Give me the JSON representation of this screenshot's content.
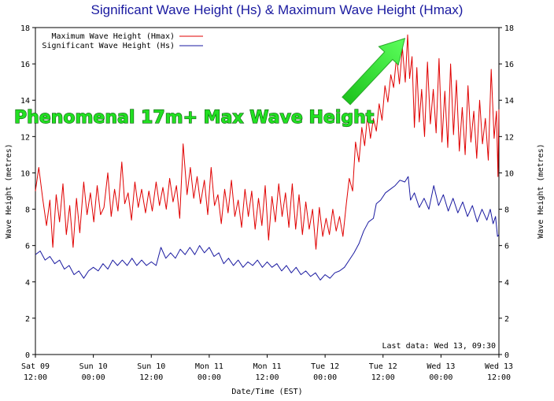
{
  "chart_data": {
    "type": "line",
    "title": "Significant Wave Height (Hs) & Maximum Wave Height (Hmax)",
    "xlabel": "Date/Time (EST)",
    "ylabel_left": "Wave Height (metres)",
    "ylabel_right": "Wave Height (metres)",
    "ylim": [
      0,
      18
    ],
    "y_ticks": [
      0,
      2,
      4,
      6,
      8,
      10,
      12,
      14,
      16,
      18
    ],
    "x_range_hours": [
      0,
      96
    ],
    "x_ticks": [
      {
        "h": 0,
        "line1": "Sat 09",
        "line2": "12:00"
      },
      {
        "h": 12,
        "line1": "Sun 10",
        "line2": "00:00"
      },
      {
        "h": 24,
        "line1": "Sun 10",
        "line2": "12:00"
      },
      {
        "h": 36,
        "line1": "Mon 11",
        "line2": "00:00"
      },
      {
        "h": 48,
        "line1": "Mon 11",
        "line2": "12:00"
      },
      {
        "h": 60,
        "line1": "Tue 12",
        "line2": "00:00"
      },
      {
        "h": 72,
        "line1": "Tue 12",
        "line2": "12:00"
      },
      {
        "h": 84,
        "line1": "Wed 13",
        "line2": "00:00"
      },
      {
        "h": 96,
        "line1": "Wed 13",
        "line2": "12:00"
      }
    ],
    "grid": false,
    "legend_position": "top-left",
    "last_data_label": "Last data: Wed 13, 09:30",
    "series": [
      {
        "name": "Maximum Wave Height (Hmax)",
        "color": "#e00000",
        "points": [
          [
            0,
            9.0
          ],
          [
            0.7,
            10.3
          ],
          [
            1.5,
            8.6
          ],
          [
            2.3,
            7.1
          ],
          [
            3.0,
            8.5
          ],
          [
            3.6,
            5.9
          ],
          [
            4.3,
            8.8
          ],
          [
            5.0,
            7.3
          ],
          [
            5.7,
            9.4
          ],
          [
            6.4,
            6.6
          ],
          [
            7.1,
            8.2
          ],
          [
            7.8,
            5.9
          ],
          [
            8.5,
            8.6
          ],
          [
            9.2,
            6.7
          ],
          [
            10.0,
            9.5
          ],
          [
            10.7,
            7.7
          ],
          [
            11.4,
            8.9
          ],
          [
            12.1,
            7.3
          ],
          [
            12.8,
            9.3
          ],
          [
            13.5,
            7.7
          ],
          [
            14.2,
            8.1
          ],
          [
            15.0,
            10.0
          ],
          [
            15.7,
            7.6
          ],
          [
            16.4,
            9.1
          ],
          [
            17.1,
            7.9
          ],
          [
            17.9,
            10.6
          ],
          [
            18.5,
            8.3
          ],
          [
            19.2,
            8.9
          ],
          [
            19.9,
            7.4
          ],
          [
            20.6,
            9.5
          ],
          [
            21.3,
            8.1
          ],
          [
            22.0,
            9.1
          ],
          [
            22.8,
            7.8
          ],
          [
            23.5,
            9.0
          ],
          [
            24.2,
            7.9
          ],
          [
            25.0,
            9.5
          ],
          [
            25.7,
            8.2
          ],
          [
            26.4,
            9.2
          ],
          [
            27.1,
            8.0
          ],
          [
            27.8,
            9.7
          ],
          [
            28.5,
            8.4
          ],
          [
            29.2,
            9.3
          ],
          [
            29.9,
            7.5
          ],
          [
            30.6,
            11.6
          ],
          [
            31.4,
            8.8
          ],
          [
            32.1,
            10.3
          ],
          [
            32.8,
            8.6
          ],
          [
            33.5,
            9.8
          ],
          [
            34.2,
            8.3
          ],
          [
            35.0,
            9.6
          ],
          [
            35.7,
            7.7
          ],
          [
            36.4,
            10.3
          ],
          [
            37.1,
            8.2
          ],
          [
            37.8,
            8.8
          ],
          [
            38.5,
            7.2
          ],
          [
            39.2,
            9.1
          ],
          [
            39.9,
            7.8
          ],
          [
            40.6,
            9.6
          ],
          [
            41.3,
            7.6
          ],
          [
            42.0,
            8.5
          ],
          [
            42.7,
            7.0
          ],
          [
            43.4,
            9.1
          ],
          [
            44.1,
            7.6
          ],
          [
            44.8,
            9.0
          ],
          [
            45.5,
            6.9
          ],
          [
            46.2,
            8.6
          ],
          [
            46.9,
            7.1
          ],
          [
            47.6,
            9.3
          ],
          [
            48.3,
            6.3
          ],
          [
            49.0,
            8.7
          ],
          [
            49.7,
            7.3
          ],
          [
            50.4,
            9.4
          ],
          [
            51.1,
            7.6
          ],
          [
            51.8,
            8.9
          ],
          [
            52.5,
            7.0
          ],
          [
            53.2,
            9.4
          ],
          [
            53.9,
            6.9
          ],
          [
            54.6,
            8.8
          ],
          [
            55.3,
            6.6
          ],
          [
            56.0,
            8.4
          ],
          [
            56.7,
            6.9
          ],
          [
            57.4,
            8.0
          ],
          [
            58.1,
            5.8
          ],
          [
            58.8,
            8.1
          ],
          [
            59.5,
            6.5
          ],
          [
            60.2,
            7.5
          ],
          [
            60.9,
            6.6
          ],
          [
            61.6,
            8.0
          ],
          [
            62.3,
            6.8
          ],
          [
            63.0,
            7.6
          ],
          [
            63.7,
            6.5
          ],
          [
            64.4,
            8.3
          ],
          [
            65.0,
            9.7
          ],
          [
            65.7,
            9.0
          ],
          [
            66.3,
            11.7
          ],
          [
            67.0,
            10.6
          ],
          [
            67.6,
            12.5
          ],
          [
            68.2,
            11.5
          ],
          [
            68.8,
            13.2
          ],
          [
            69.4,
            11.9
          ],
          [
            70.0,
            13.0
          ],
          [
            70.6,
            12.3
          ],
          [
            71.2,
            13.8
          ],
          [
            71.8,
            12.9
          ],
          [
            72.4,
            14.8
          ],
          [
            73.0,
            13.9
          ],
          [
            73.6,
            15.4
          ],
          [
            74.2,
            14.7
          ],
          [
            74.8,
            16.4
          ],
          [
            75.4,
            14.9
          ],
          [
            76.0,
            16.9
          ],
          [
            76.6,
            15.0
          ],
          [
            77.1,
            17.6
          ],
          [
            77.5,
            15.2
          ],
          [
            78.0,
            16.4
          ],
          [
            78.5,
            12.5
          ],
          [
            79.0,
            15.8
          ],
          [
            79.5,
            12.8
          ],
          [
            80.0,
            14.6
          ],
          [
            80.6,
            12.0
          ],
          [
            81.2,
            16.1
          ],
          [
            81.8,
            12.7
          ],
          [
            82.4,
            14.6
          ],
          [
            83.0,
            12.2
          ],
          [
            83.6,
            16.3
          ],
          [
            84.2,
            11.7
          ],
          [
            84.8,
            14.5
          ],
          [
            85.4,
            11.4
          ],
          [
            86.0,
            16.0
          ],
          [
            86.6,
            12.1
          ],
          [
            87.2,
            15.1
          ],
          [
            87.8,
            11.2
          ],
          [
            88.4,
            13.6
          ],
          [
            89.0,
            11.0
          ],
          [
            89.6,
            14.8
          ],
          [
            90.2,
            11.7
          ],
          [
            90.8,
            13.4
          ],
          [
            91.4,
            10.8
          ],
          [
            92.0,
            14.0
          ],
          [
            92.6,
            11.6
          ],
          [
            93.2,
            13.0
          ],
          [
            93.8,
            10.7
          ],
          [
            94.4,
            15.7
          ],
          [
            95.0,
            11.9
          ],
          [
            95.5,
            13.4
          ],
          [
            95.8,
            9.8
          ],
          [
            96.0,
            13.5
          ]
        ]
      },
      {
        "name": "Significant Wave Height (Hs)",
        "color": "#1a1aa0",
        "points": [
          [
            0,
            5.5
          ],
          [
            1.0,
            5.7
          ],
          [
            2.0,
            5.2
          ],
          [
            3.0,
            5.4
          ],
          [
            4.0,
            5.0
          ],
          [
            5.0,
            5.2
          ],
          [
            6.0,
            4.7
          ],
          [
            7.0,
            4.9
          ],
          [
            8.0,
            4.4
          ],
          [
            9.0,
            4.6
          ],
          [
            10.0,
            4.2
          ],
          [
            11.0,
            4.6
          ],
          [
            12.0,
            4.8
          ],
          [
            13.0,
            4.6
          ],
          [
            14.0,
            5.0
          ],
          [
            15.0,
            4.7
          ],
          [
            16.0,
            5.2
          ],
          [
            17.0,
            4.9
          ],
          [
            18.0,
            5.2
          ],
          [
            19.0,
            4.9
          ],
          [
            20.0,
            5.3
          ],
          [
            21.0,
            4.9
          ],
          [
            22.0,
            5.2
          ],
          [
            23.0,
            4.9
          ],
          [
            24.0,
            5.1
          ],
          [
            25.0,
            4.9
          ],
          [
            26.0,
            5.9
          ],
          [
            27.0,
            5.3
          ],
          [
            28.0,
            5.6
          ],
          [
            29.0,
            5.3
          ],
          [
            30.0,
            5.8
          ],
          [
            31.0,
            5.5
          ],
          [
            32.0,
            5.9
          ],
          [
            33.0,
            5.5
          ],
          [
            34.0,
            6.0
          ],
          [
            35.0,
            5.6
          ],
          [
            36.0,
            5.9
          ],
          [
            37.0,
            5.4
          ],
          [
            38.0,
            5.6
          ],
          [
            39.0,
            5.0
          ],
          [
            40.0,
            5.3
          ],
          [
            41.0,
            4.9
          ],
          [
            42.0,
            5.2
          ],
          [
            43.0,
            4.8
          ],
          [
            44.0,
            5.1
          ],
          [
            45.0,
            4.9
          ],
          [
            46.0,
            5.2
          ],
          [
            47.0,
            4.8
          ],
          [
            48.0,
            5.1
          ],
          [
            49.0,
            4.8
          ],
          [
            50.0,
            5.0
          ],
          [
            51.0,
            4.6
          ],
          [
            52.0,
            4.9
          ],
          [
            53.0,
            4.5
          ],
          [
            54.0,
            4.8
          ],
          [
            55.0,
            4.4
          ],
          [
            56.0,
            4.6
          ],
          [
            57.0,
            4.3
          ],
          [
            58.0,
            4.5
          ],
          [
            59.0,
            4.1
          ],
          [
            60.0,
            4.4
          ],
          [
            61.0,
            4.2
          ],
          [
            62.0,
            4.5
          ],
          [
            63.0,
            4.6
          ],
          [
            64.0,
            4.8
          ],
          [
            65.0,
            5.2
          ],
          [
            66.0,
            5.6
          ],
          [
            67.0,
            6.1
          ],
          [
            68.0,
            6.8
          ],
          [
            69.0,
            7.3
          ],
          [
            70.0,
            7.5
          ],
          [
            70.6,
            8.3
          ],
          [
            71.5,
            8.5
          ],
          [
            72.5,
            8.9
          ],
          [
            73.5,
            9.1
          ],
          [
            74.5,
            9.3
          ],
          [
            75.5,
            9.6
          ],
          [
            76.5,
            9.5
          ],
          [
            77.2,
            9.8
          ],
          [
            77.7,
            8.5
          ],
          [
            78.5,
            8.9
          ],
          [
            79.5,
            8.1
          ],
          [
            80.5,
            8.6
          ],
          [
            81.5,
            8.0
          ],
          [
            82.5,
            9.3
          ],
          [
            83.5,
            8.2
          ],
          [
            84.5,
            8.8
          ],
          [
            85.5,
            7.9
          ],
          [
            86.5,
            8.6
          ],
          [
            87.5,
            7.8
          ],
          [
            88.5,
            8.4
          ],
          [
            89.5,
            7.6
          ],
          [
            90.5,
            8.2
          ],
          [
            91.5,
            7.3
          ],
          [
            92.5,
            8.0
          ],
          [
            93.5,
            7.4
          ],
          [
            94.2,
            8.0
          ],
          [
            94.8,
            7.2
          ],
          [
            95.3,
            7.6
          ],
          [
            95.7,
            6.5
          ],
          [
            96.0,
            6.6
          ]
        ]
      }
    ],
    "annotation": {
      "text": "Phenomenal 17m+ Max Wave Height",
      "color": "#22e022",
      "arrow_target": {
        "h": 76.5,
        "y": 17.4
      }
    }
  }
}
